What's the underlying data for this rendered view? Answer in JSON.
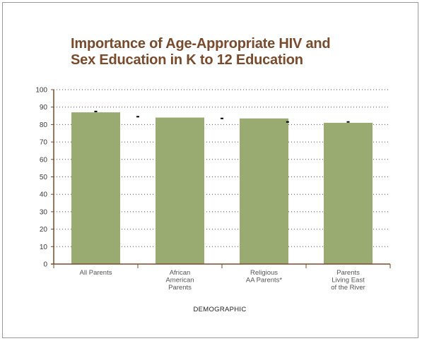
{
  "colors": {
    "bar": "#9aab72",
    "title": "#7a4a2c",
    "axis": "#7a4a2c",
    "grid": "#555555",
    "marker": "#000000"
  },
  "chart_data": {
    "type": "bar",
    "title_lines": [
      "Importance of Age-Appropriate HIV and",
      "Sex Education in K to 12 Education"
    ],
    "xlabel": "DEMOGRAPHIC",
    "ylabel": "",
    "ylim": [
      0,
      100
    ],
    "yticks": [
      0,
      10,
      20,
      30,
      40,
      50,
      60,
      70,
      80,
      90,
      100
    ],
    "grid": true,
    "categories": [
      [
        "All Parents"
      ],
      [
        "African",
        "American",
        "Parents"
      ],
      [
        "Religious",
        "AA Parents*"
      ],
      [
        "Parents",
        "Living East",
        "of the River"
      ]
    ],
    "values": [
      87,
      84,
      83.5,
      81
    ],
    "markers": [
      {
        "x_index": 0,
        "offset": 0,
        "value": 87.5
      },
      {
        "x_index": 0,
        "offset": 1,
        "value": 84.5
      },
      {
        "x_index": 1,
        "offset": 1,
        "value": 83.5
      },
      {
        "x_index": 2,
        "offset": 0.5,
        "value": 81.5
      },
      {
        "x_index": 3,
        "offset": 0,
        "value": 81.5
      }
    ]
  }
}
